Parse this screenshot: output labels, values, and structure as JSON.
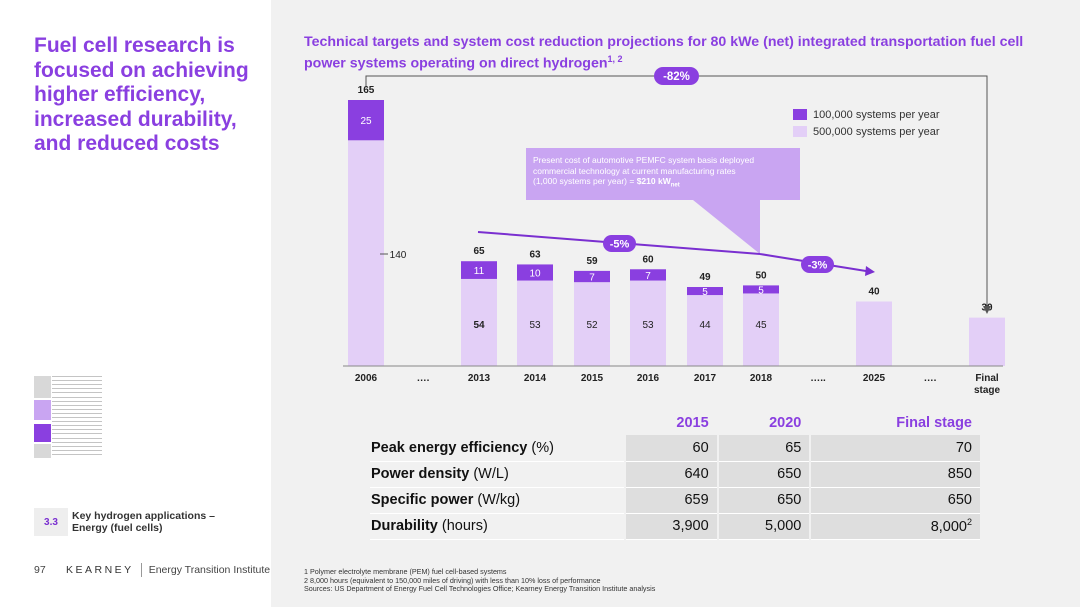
{
  "headline": "Fuel cell research is focused on achieving higher efficiency, increased durability, and reduced costs",
  "section": {
    "number": "3.3",
    "label_line1": "Key hydrogen applications –",
    "label_line2": "Energy (fuel cells)"
  },
  "footer": {
    "page_number": "97",
    "brand": "KEARNEY",
    "institute": "Energy Transition Institute"
  },
  "chart_title": {
    "text": "Technical targets and system cost reduction projections for 80 kWe (net) integrated transportation fuel cell power systems operating on direct hydrogen",
    "superscript": "1, 2"
  },
  "colors": {
    "accent": "#8a3fe0",
    "dark_segment": "#8a3fe0",
    "light_segment": "#e3cff7"
  },
  "chart_data": {
    "type": "bar",
    "stacked": true,
    "categories": [
      "2006",
      "….",
      "2013",
      "2014",
      "2015",
      "2016",
      "2017",
      "2018",
      "…..",
      "2025",
      "….",
      "Final stage"
    ],
    "series": [
      {
        "name": "500,000 systems per year",
        "values": [
          140,
          null,
          54,
          53,
          52,
          53,
          44,
          45,
          null,
          40,
          null,
          30
        ]
      },
      {
        "name": "100,000 systems per year",
        "values": [
          25,
          null,
          11,
          10,
          7,
          7,
          5,
          5,
          null,
          null,
          null,
          null
        ]
      }
    ],
    "totals": [
      165,
      null,
      65,
      63,
      59,
      60,
      49,
      50,
      null,
      40,
      null,
      30
    ],
    "bottom_labels": [
      "140",
      null,
      "54",
      "53",
      "52",
      "53",
      "44",
      "45",
      null,
      "",
      null,
      ""
    ],
    "top_labels": [
      "165",
      null,
      "65",
      "63",
      "59",
      "60",
      "49",
      "50",
      null,
      "40",
      null,
      "30"
    ],
    "mid_labels": [
      "25",
      null,
      "11",
      "10",
      "7",
      "7",
      "5",
      "5",
      null,
      "",
      null,
      ""
    ],
    "ylim": [
      0,
      170
    ],
    "legend_position": "top-right",
    "annotations": {
      "overall_reduction": "-82%",
      "trend_2013_2018": "-5%",
      "trend_2018_2025": "-3%",
      "callout_line1": "Present cost of automotive PEMFC system basis deployed",
      "callout_line2": "commercial technology at current manufacturing rates",
      "callout_line3": "(1,000 systems per year) = ",
      "callout_value": "$210 kW",
      "callout_sub": "net"
    }
  },
  "table": {
    "headers": [
      "2015",
      "2020",
      "Final stage"
    ],
    "rows": [
      {
        "label": "Peak energy efficiency",
        "unit": " (%)",
        "values": [
          "60",
          "65",
          "70"
        ]
      },
      {
        "label": "Power density",
        "unit": " (W/L)",
        "values": [
          "640",
          "650",
          "850"
        ]
      },
      {
        "label": "Specific power",
        "unit": " (W/kg)",
        "values": [
          "659",
          "650",
          "650"
        ]
      },
      {
        "label": "Durability",
        "unit": " (hours)",
        "values": [
          "3,900",
          "5,000",
          "8,000"
        ]
      }
    ],
    "durability_final_sup": "2"
  },
  "footnotes": [
    "1 Polymer electrolyte membrane (PEM) fuel cell-based systems",
    "2 8,000 hours (equivalent to 150,000 miles of driving) with less than 10% loss of performance",
    "Sources: US Department of Energy Fuel Cell Technologies Office; Kearney Energy Transition Institute analysis"
  ]
}
